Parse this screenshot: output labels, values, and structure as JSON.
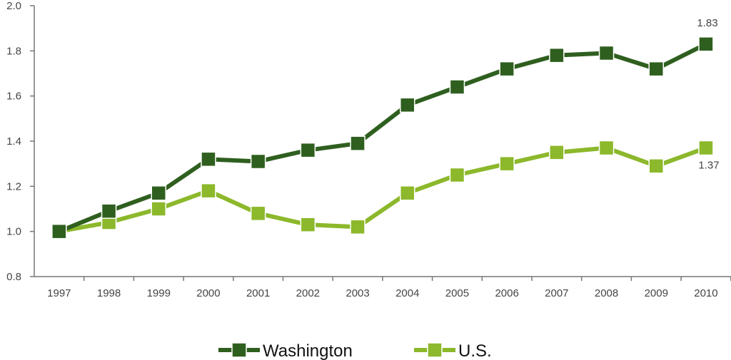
{
  "chart_data": {
    "type": "line",
    "title": "",
    "xlabel": "",
    "ylabel": "",
    "ylim": [
      0.8,
      2.0
    ],
    "yticks": [
      "0.8",
      "1.0",
      "1.2",
      "1.4",
      "1.6",
      "1.8",
      "2.0"
    ],
    "categories": [
      "1997",
      "1998",
      "1999",
      "2000",
      "2001",
      "2002",
      "2003",
      "2004",
      "2005",
      "2006",
      "2007",
      "2008",
      "2009",
      "2010"
    ],
    "grid": false,
    "legend_position": "bottom",
    "series": [
      {
        "name": "Washington",
        "color": "#2f5f1f",
        "values": [
          1.0,
          1.09,
          1.17,
          1.32,
          1.31,
          1.36,
          1.39,
          1.56,
          1.64,
          1.72,
          1.78,
          1.79,
          1.72,
          1.83
        ],
        "end_label": "1.83"
      },
      {
        "name": "U.S.",
        "color": "#8cb82b",
        "values": [
          1.0,
          1.04,
          1.1,
          1.18,
          1.08,
          1.03,
          1.02,
          1.17,
          1.25,
          1.3,
          1.35,
          1.37,
          1.29,
          1.37
        ],
        "end_label": "1.37"
      }
    ]
  }
}
